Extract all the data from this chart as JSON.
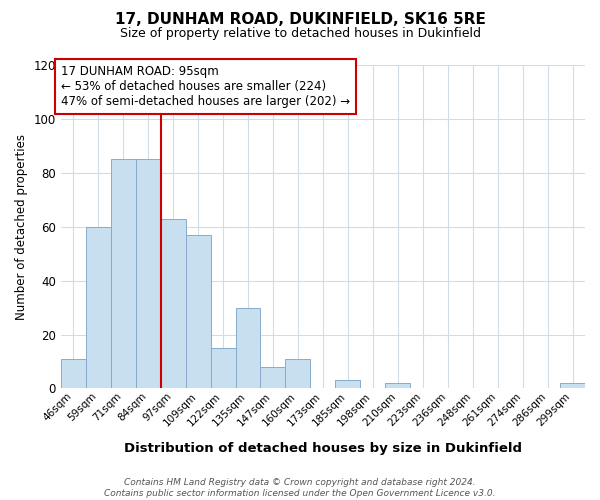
{
  "title": "17, DUNHAM ROAD, DUKINFIELD, SK16 5RE",
  "subtitle": "Size of property relative to detached houses in Dukinfield",
  "xlabel": "Distribution of detached houses by size in Dukinfield",
  "ylabel": "Number of detached properties",
  "bar_labels": [
    "46sqm",
    "59sqm",
    "71sqm",
    "84sqm",
    "97sqm",
    "109sqm",
    "122sqm",
    "135sqm",
    "147sqm",
    "160sqm",
    "173sqm",
    "185sqm",
    "198sqm",
    "210sqm",
    "223sqm",
    "236sqm",
    "248sqm",
    "261sqm",
    "274sqm",
    "286sqm",
    "299sqm"
  ],
  "bar_values": [
    11,
    60,
    85,
    85,
    63,
    57,
    15,
    30,
    8,
    11,
    0,
    3,
    0,
    2,
    0,
    0,
    0,
    0,
    0,
    0,
    2
  ],
  "bar_color": "#c8dff0",
  "bar_edge_color": "#88aacc",
  "highlight_line_color": "#cc0000",
  "box_text_line1": "17 DUNHAM ROAD: 95sqm",
  "box_text_line2": "← 53% of detached houses are smaller (224)",
  "box_text_line3": "47% of semi-detached houses are larger (202) →",
  "box_edge_color": "#cc0000",
  "ylim": [
    0,
    120
  ],
  "yticks": [
    0,
    20,
    40,
    60,
    80,
    100,
    120
  ],
  "grid_color": "#d0dce8",
  "footnote": "Contains HM Land Registry data © Crown copyright and database right 2024.\nContains public sector information licensed under the Open Government Licence v3.0.",
  "figsize": [
    6.0,
    5.0
  ],
  "dpi": 100
}
